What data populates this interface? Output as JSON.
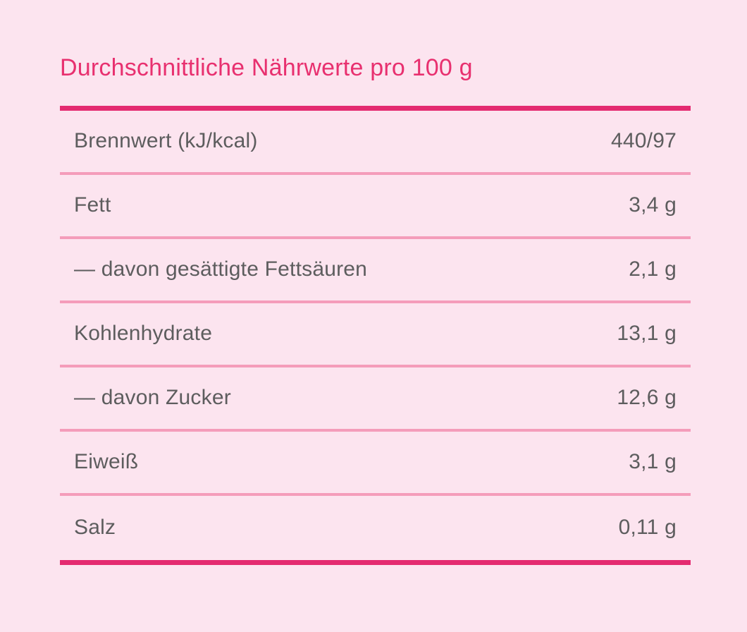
{
  "colors": {
    "background": "#fce4ef",
    "accent": "#e42a70",
    "title": "#e8306f",
    "divider": "#f49cba",
    "text": "#5d5d5e"
  },
  "nutrition": {
    "title": "Durchschnittliche Nährwerte pro 100 g",
    "rows": [
      {
        "label": "Brennwert (kJ/kcal)",
        "value": "440/97"
      },
      {
        "label": "Fett",
        "value": "3,4 g"
      },
      {
        "label": "— davon gesättigte Fettsäuren",
        "value": "2,1 g"
      },
      {
        "label": "Kohlenhydrate",
        "value": "13,1 g"
      },
      {
        "label": "— davon Zucker",
        "value": "12,6 g"
      },
      {
        "label": "Eiweiß",
        "value": "3,1 g"
      },
      {
        "label": "Salz",
        "value": "0,11 g"
      }
    ]
  }
}
